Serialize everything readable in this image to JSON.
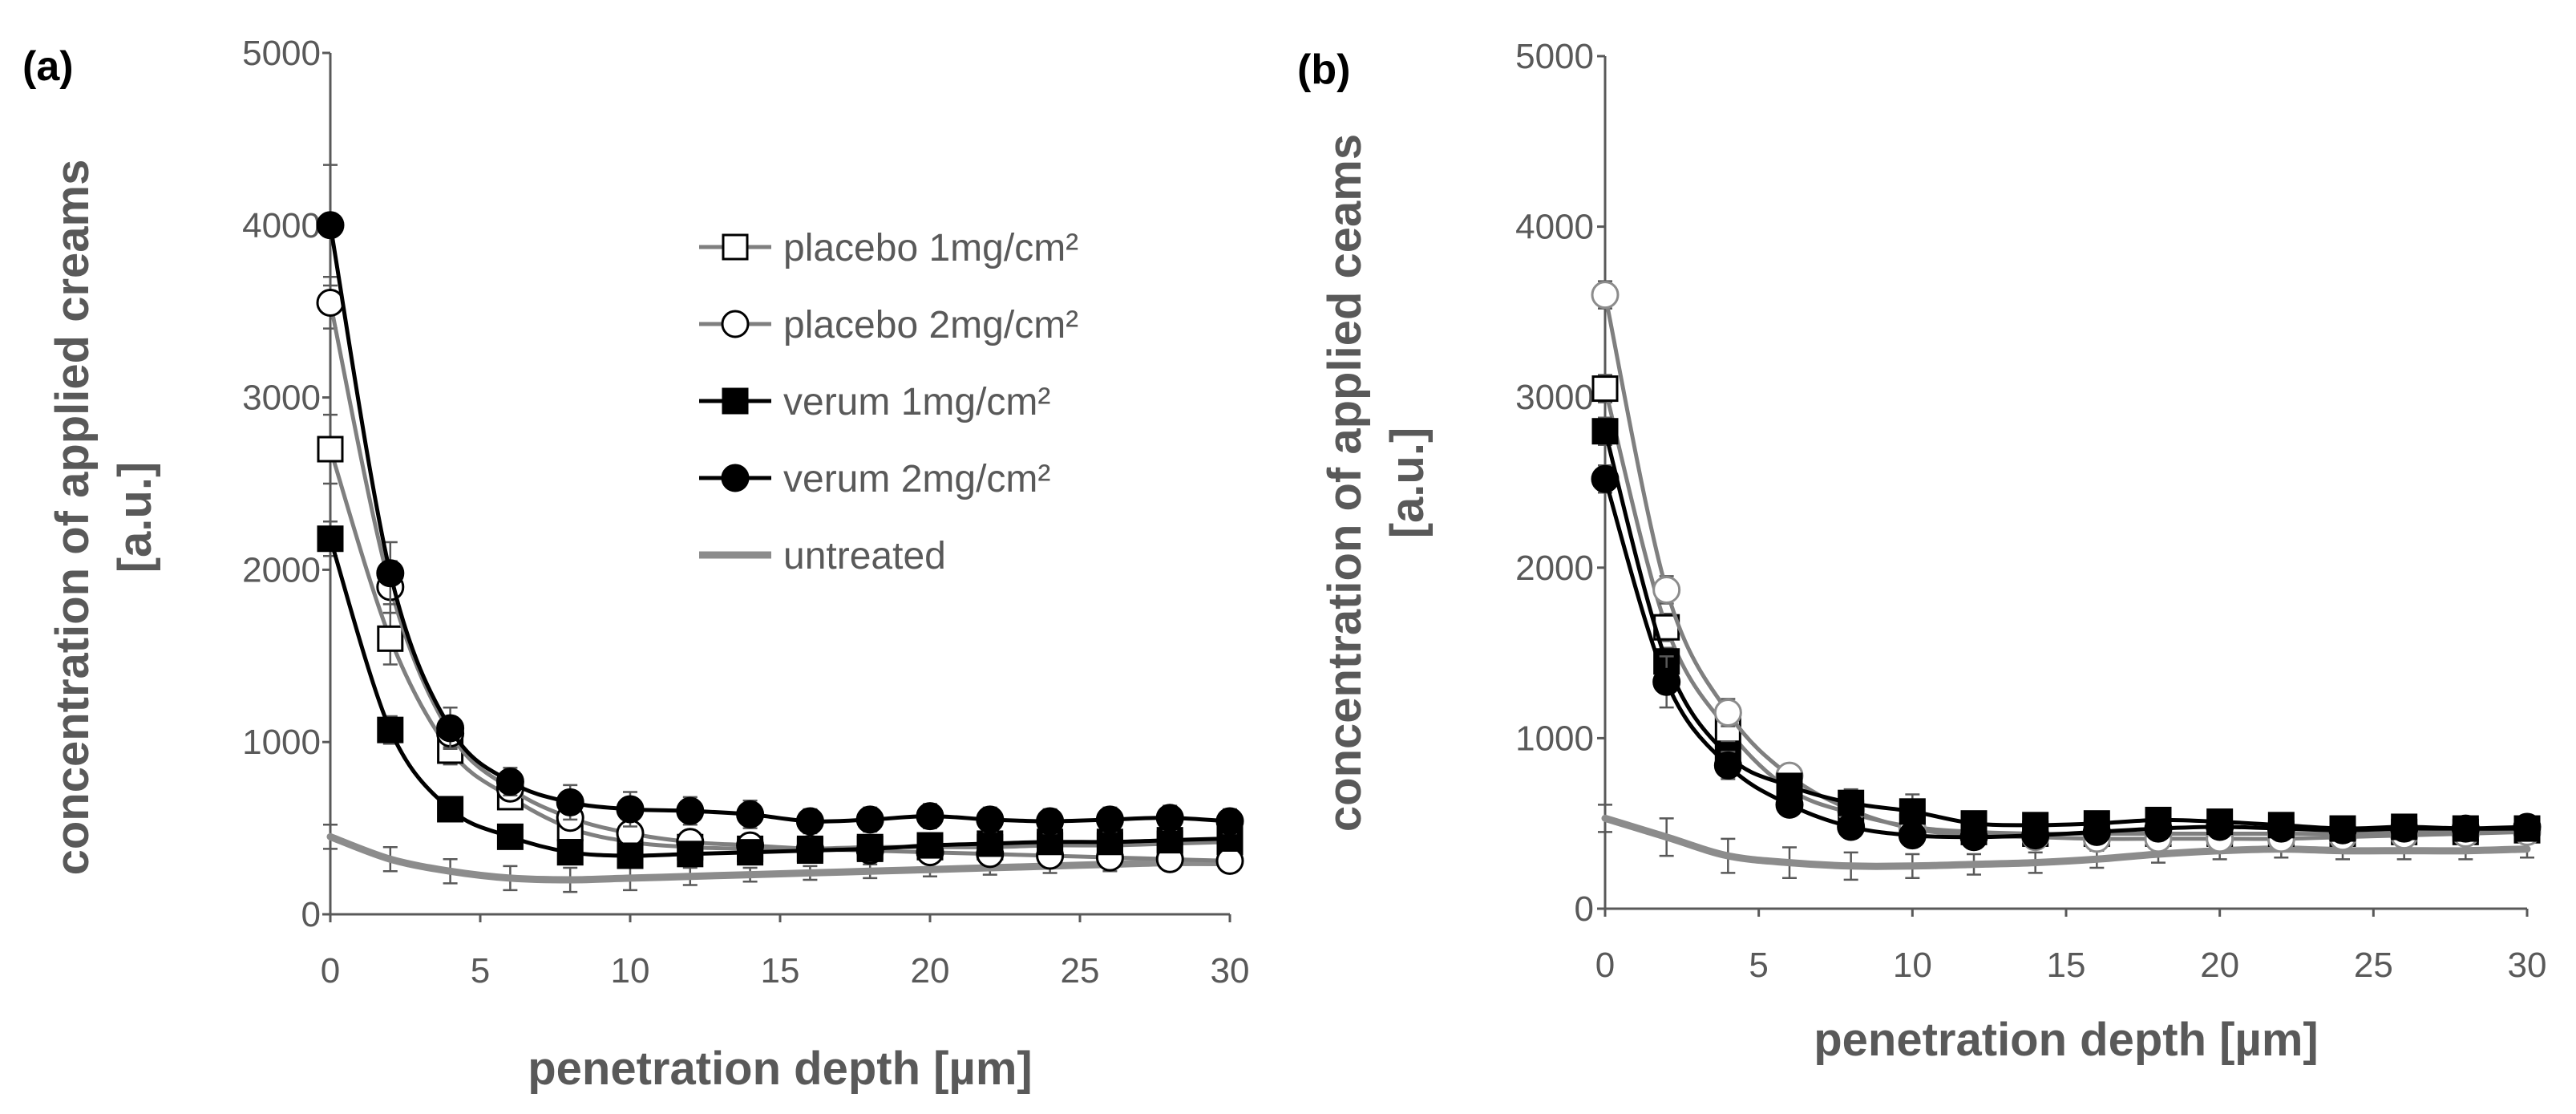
{
  "colors": {
    "axis": "#595959",
    "placebo_line": "#7f7f7f",
    "verum_line": "#000000",
    "untreated_line": "#8c8c8c",
    "error_bar": "#595959"
  },
  "legend": [
    {
      "label": "placebo 1mg/cm²",
      "marker": "square",
      "filled": false,
      "color": "#7f7f7f"
    },
    {
      "label": "placebo 2mg/cm²",
      "marker": "circle",
      "filled": false,
      "color": "#7f7f7f"
    },
    {
      "label": "verum 1mg/cm²",
      "marker": "square",
      "filled": true,
      "color": "#000000"
    },
    {
      "label": "verum 2mg/cm²",
      "marker": "circle",
      "filled": true,
      "color": "#000000"
    },
    {
      "label": "untreated",
      "marker": "none",
      "filled": false,
      "color": "#8c8c8c"
    }
  ],
  "chart_data": [
    {
      "type": "line",
      "panel_label": "(a)",
      "xlabel": "penetration depth [µm]",
      "ylabel_line1": "concentration of applied creams",
      "ylabel_line2": "[a.u.]",
      "xlim": [
        0,
        30
      ],
      "ylim": [
        0,
        5000
      ],
      "x_ticks": [
        0,
        5,
        10,
        15,
        20,
        25,
        30
      ],
      "y_ticks": [
        0,
        1000,
        2000,
        3000,
        4000,
        5000
      ],
      "legend_position": "top-right",
      "x": [
        0,
        2,
        4,
        6,
        8,
        10,
        12,
        14,
        16,
        18,
        20,
        22,
        24,
        26,
        28,
        30
      ],
      "series": [
        {
          "name": "placebo 1mg/cm²",
          "marker": "square",
          "filled": false,
          "color": "#7f7f7f",
          "values": [
            2700,
            1600,
            950,
            680,
            500,
            420,
            390,
            380,
            380,
            390,
            390,
            390,
            400,
            400,
            410,
            420
          ],
          "errors": [
            200,
            150,
            80,
            60,
            50,
            40,
            40,
            40,
            40,
            40,
            40,
            40,
            40,
            40,
            40,
            40
          ]
        },
        {
          "name": "placebo 2mg/cm²",
          "marker": "circle",
          "filled": false,
          "color": "#7f7f7f",
          "values": [
            3550,
            1900,
            1050,
            730,
            560,
            470,
            420,
            400,
            380,
            370,
            360,
            350,
            340,
            330,
            320,
            310
          ],
          "errors": [
            150,
            150,
            80,
            60,
            50,
            40,
            40,
            40,
            40,
            40,
            40,
            40,
            40,
            40,
            40,
            40
          ]
        },
        {
          "name": "verum 1mg/cm²",
          "marker": "square",
          "filled": true,
          "color": "#000000",
          "values": [
            2180,
            1070,
            610,
            450,
            360,
            340,
            350,
            360,
            370,
            380,
            400,
            410,
            420,
            420,
            430,
            440
          ],
          "errors": [
            100,
            80,
            60,
            50,
            40,
            40,
            40,
            40,
            40,
            40,
            40,
            40,
            40,
            40,
            40,
            40
          ]
        },
        {
          "name": "verum 2mg/cm²",
          "marker": "circle",
          "filled": true,
          "color": "#000000",
          "values": [
            4000,
            1980,
            1080,
            770,
            650,
            610,
            600,
            580,
            540,
            550,
            570,
            550,
            540,
            550,
            560,
            540
          ],
          "errors": [
            350,
            180,
            120,
            80,
            100,
            100,
            80,
            80,
            70,
            70,
            70,
            70,
            70,
            70,
            70,
            70
          ]
        },
        {
          "name": "untreated",
          "marker": "none",
          "filled": false,
          "color": "#8c8c8c",
          "values": [
            450,
            320,
            250,
            210,
            200,
            210,
            220,
            230,
            240,
            250,
            260,
            270,
            280,
            290,
            300,
            300
          ],
          "errors": [
            70,
            70,
            70,
            70,
            70,
            70,
            50,
            40,
            40,
            40,
            40,
            40,
            40,
            40,
            40,
            40
          ]
        }
      ]
    },
    {
      "type": "line",
      "panel_label": "(b)",
      "xlabel": "penetration depth [µm]",
      "ylabel_line1": "concentration of applied ceams",
      "ylabel_line2": "[a.u.]",
      "xlim": [
        0,
        30
      ],
      "ylim": [
        0,
        5000
      ],
      "x_ticks": [
        0,
        5,
        10,
        15,
        20,
        25,
        30
      ],
      "y_ticks": [
        0,
        1000,
        2000,
        3000,
        4000,
        5000
      ],
      "x": [
        0,
        2,
        4,
        6,
        8,
        10,
        12,
        14,
        16,
        18,
        20,
        22,
        24,
        26,
        28,
        30
      ],
      "series": [
        {
          "name": "placebo 1mg/cm²",
          "marker": "square",
          "filled": false,
          "color": "#7f7f7f",
          "values": [
            3050,
            1650,
            1050,
            700,
            560,
            480,
            450,
            440,
            440,
            440,
            440,
            440,
            440,
            450,
            450,
            460
          ],
          "errors": [
            80,
            80,
            60,
            60,
            60,
            60,
            50,
            50,
            50,
            50,
            50,
            50,
            50,
            50,
            50,
            50
          ]
        },
        {
          "name": "placebo 2mg/cm²",
          "marker": "circle",
          "filled": false,
          "color": "#7f7f7f",
          "values": [
            3600,
            1870,
            1150,
            780,
            580,
            470,
            430,
            420,
            410,
            410,
            410,
            410,
            420,
            430,
            440,
            450
          ],
          "errors": [
            80,
            80,
            80,
            60,
            60,
            60,
            50,
            50,
            50,
            50,
            50,
            50,
            50,
            50,
            50,
            50
          ]
        },
        {
          "name": "verum 1mg/cm²",
          "marker": "square",
          "filled": true,
          "color": "#000000",
          "values": [
            2800,
            1450,
            900,
            720,
            620,
            570,
            500,
            490,
            500,
            520,
            510,
            490,
            470,
            480,
            470,
            470
          ],
          "errors": [
            80,
            80,
            80,
            60,
            80,
            100,
            60,
            60,
            60,
            70,
            70,
            60,
            60,
            60,
            60,
            60
          ]
        },
        {
          "name": "verum 2mg/cm²",
          "marker": "circle",
          "filled": true,
          "color": "#000000",
          "values": [
            2520,
            1330,
            840,
            610,
            480,
            430,
            420,
            430,
            450,
            470,
            480,
            470,
            460,
            470,
            470,
            480
          ],
          "errors": [
            80,
            150,
            80,
            60,
            60,
            60,
            60,
            60,
            60,
            60,
            60,
            60,
            60,
            60,
            60,
            60
          ]
        },
        {
          "name": "untreated",
          "marker": "none",
          "filled": false,
          "color": "#8c8c8c",
          "values": [
            530,
            420,
            310,
            270,
            250,
            250,
            260,
            270,
            290,
            320,
            340,
            350,
            340,
            340,
            340,
            350
          ],
          "errors": [
            80,
            110,
            100,
            90,
            80,
            70,
            60,
            60,
            50,
            50,
            50,
            50,
            50,
            50,
            50,
            50
          ]
        }
      ]
    }
  ]
}
